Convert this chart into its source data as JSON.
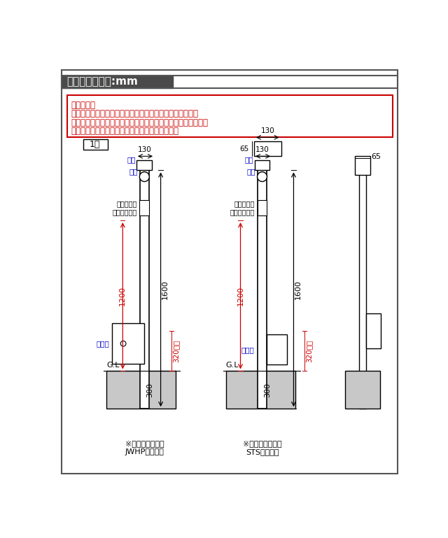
{
  "title_bg_color": "#4a4a4a",
  "title_text": "納まり図　単位:mm",
  "title_text_color": "#ffffff",
  "notice_border_color": "#cc0000",
  "notice_text_color": "#cc0000",
  "notice_lines": [
    "【ご注意】",
    "コレット共通の収まり図ですのでポスト・表札・照明等が",
    "販売しているものとは異なっていたり、販売していない部材が",
    "含まれていたりしておりますが、ご了承下さい。"
  ],
  "label_1gata": "1型",
  "dim_130": "130",
  "dim_65_top": "65",
  "dim_65_right": "65",
  "label_shoumei": "照明",
  "label_hyousatsu": "表札",
  "label_terebi": "（テレビ）\nインターホン",
  "label_posuto": "ポスト",
  "dim_1200": "1200",
  "dim_1600": "1600",
  "dim_320": "320以上",
  "dim_300": "300",
  "label_GL": "G.L",
  "note1": "※本図のポストは\nJWHP型の場合",
  "note2": "※本図のポストは\nSTS型の場合",
  "bg_color": "#ffffff",
  "dim_color_red": "#cc0000",
  "dim_color_black": "#000000",
  "ground_color": "#c8c8c8",
  "blue_label_color": "#0000cc"
}
